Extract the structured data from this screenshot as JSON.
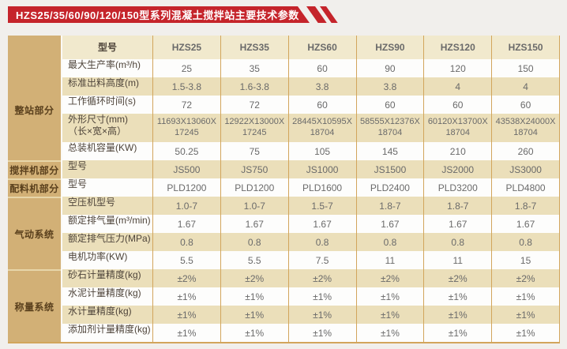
{
  "title": "HZS25/35/60/90/120/150型系列混凝土搅拌站主要技术参数",
  "colors": {
    "banner_red": "#c5242b",
    "group_column_tan": "#d2b076",
    "header_cream": "#f1e9cd",
    "row_cream": "#ebdfba",
    "grid_border": "#d2a55c"
  },
  "table": {
    "header": {
      "param_label": "型号",
      "models": [
        "HZS25",
        "HZS35",
        "HZS60",
        "HZS90",
        "HZS120",
        "HZS150"
      ]
    },
    "groups": [
      {
        "label": "整站部分",
        "rows": [
          {
            "param": "最大生产率(m³/h)",
            "values": [
              "25",
              "35",
              "60",
              "90",
              "120",
              "150"
            ]
          },
          {
            "param": "标准出料高度(m)",
            "values": [
              "1.5-3.8",
              "1.6-3.8",
              "3.8",
              "3.8",
              "4",
              "4"
            ]
          },
          {
            "param": "工作循环时间(s)",
            "values": [
              "72",
              "72",
              "60",
              "60",
              "60",
              "60"
            ]
          },
          {
            "param": "外形尺寸(mm)",
            "param2": "（长×宽×高）",
            "tall": true,
            "values": [
              "11693X13060X 17245",
              "12922X13000X 17245",
              "28445X10595X 18704",
              "58555X12376X 18704",
              "60120X13700X 18704",
              "43538X24000X 18704"
            ]
          },
          {
            "param": "总装机容量(KW)",
            "values": [
              "50.25",
              "75",
              "105",
              "145",
              "210",
              "260"
            ]
          }
        ]
      },
      {
        "label": "搅拌机部分",
        "rows": [
          {
            "param": "型号",
            "values": [
              "JS500",
              "JS750",
              "JS1000",
              "JS1500",
              "JS2000",
              "JS3000"
            ]
          }
        ]
      },
      {
        "label": "配料机部分",
        "rows": [
          {
            "param": "型号",
            "values": [
              "PLD1200",
              "PLD1200",
              "PLD1600",
              "PLD2400",
              "PLD3200",
              "PLD4800"
            ]
          }
        ]
      },
      {
        "label": "气动系统",
        "rows": [
          {
            "param": "空压机型号",
            "values": [
              "1.0-7",
              "1.0-7",
              "1.5-7",
              "1.8-7",
              "1.8-7",
              "1.8-7"
            ]
          },
          {
            "param": "额定排气量(m³/min)",
            "values": [
              "1.67",
              "1.67",
              "1.67",
              "1.67",
              "1.67",
              "1.67"
            ]
          },
          {
            "param": "额定排气压力(MPa)",
            "values": [
              "0.8",
              "0.8",
              "0.8",
              "0.8",
              "0.8",
              "0.8"
            ]
          },
          {
            "param": "电机功率(KW)",
            "values": [
              "5.5",
              "5.5",
              "7.5",
              "11",
              "11",
              "15"
            ]
          }
        ]
      },
      {
        "label": "称量系统",
        "rows": [
          {
            "param": "砂石计量精度(kg)",
            "values": [
              "±2%",
              "±2%",
              "±2%",
              "±2%",
              "±2%",
              "±2%"
            ]
          },
          {
            "param": "水泥计量精度(kg)",
            "values": [
              "±1%",
              "±1%",
              "±1%",
              "±1%",
              "±1%",
              "±1%"
            ]
          },
          {
            "param": "水计量精度(kg)",
            "values": [
              "±1%",
              "±1%",
              "±1%",
              "±1%",
              "±1%",
              "±1%"
            ]
          },
          {
            "param": "添加剂计量精度(kg)",
            "values": [
              "±1%",
              "±1%",
              "±1%",
              "±1%",
              "±1%",
              "±1%"
            ]
          }
        ]
      }
    ]
  }
}
